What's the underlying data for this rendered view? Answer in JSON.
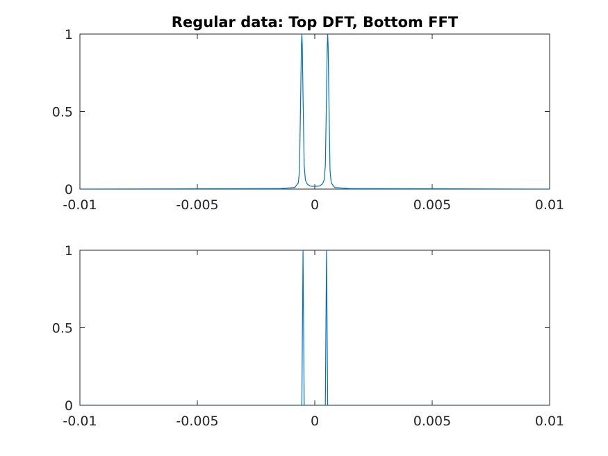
{
  "figure": {
    "title": "Regular data: Top DFT, Bottom FFT"
  },
  "chart_data": [
    {
      "type": "line",
      "title": "Regular data: Top DFT, Bottom FFT",
      "xlabel": "",
      "ylabel": "",
      "xlim": [
        -0.01,
        0.01
      ],
      "ylim": [
        0,
        1
      ],
      "grid": false,
      "xticks": [
        -0.01,
        -0.005,
        0,
        0.005,
        0.01
      ],
      "xtick_labels": [
        "-0.01",
        "-0.005",
        "0",
        "0.005",
        "0.01"
      ],
      "yticks": [
        0,
        0.5,
        1
      ],
      "ytick_labels": [
        "0",
        "0.5",
        "1"
      ],
      "series": [
        {
          "color": "#0072bd",
          "x": [
            -0.01,
            -0.0015,
            -0.00085,
            -0.0007,
            -0.00065,
            -0.0006,
            -0.00057,
            -0.00055,
            -0.00053,
            -0.0005,
            -0.00045,
            -0.0004,
            -0.00035,
            -0.0003,
            -0.0002,
            -0.0001,
            0,
            0.0001,
            0.0002,
            0.0003,
            0.00035,
            0.0004,
            0.00045,
            0.0005,
            0.00053,
            0.00055,
            0.00057,
            0.0006,
            0.00065,
            0.0007,
            0.00085,
            0.0015,
            0.01
          ],
          "y": [
            0,
            0.003,
            0.01,
            0.04,
            0.12,
            0.6,
            0.92,
            1.0,
            0.92,
            0.6,
            0.15,
            0.06,
            0.04,
            0.03,
            0.02,
            0.018,
            0.018,
            0.018,
            0.02,
            0.03,
            0.04,
            0.06,
            0.15,
            0.6,
            0.92,
            1.0,
            0.92,
            0.6,
            0.12,
            0.04,
            0.01,
            0.003,
            0
          ]
        }
      ]
    },
    {
      "type": "line",
      "xlabel": "",
      "ylabel": "",
      "xlim": [
        -0.01,
        0.01
      ],
      "ylim": [
        0,
        1
      ],
      "grid": false,
      "xticks": [
        -0.01,
        -0.005,
        0,
        0.005,
        0.01
      ],
      "xtick_labels": [
        "-0.01",
        "-0.005",
        "0",
        "0.005",
        "0.01"
      ],
      "yticks": [
        0,
        0.5,
        1
      ],
      "ytick_labels": [
        "0",
        "0.5",
        "1"
      ],
      "series": [
        {
          "color": "#0072bd",
          "x": [
            -0.01,
            -0.00055,
            -0.0005,
            -0.00045,
            0.00045,
            0.0005,
            0.00055,
            0.01
          ],
          "y": [
            0,
            0,
            1,
            0,
            0,
            1,
            0,
            0
          ]
        }
      ]
    }
  ]
}
